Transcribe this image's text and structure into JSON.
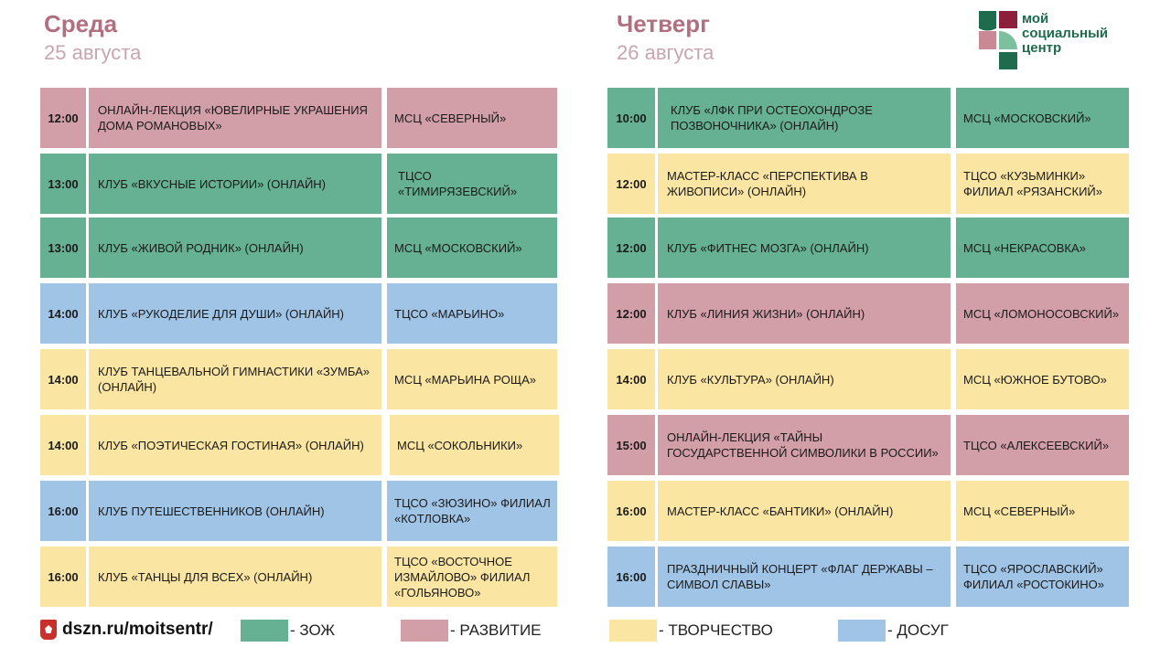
{
  "left": {
    "day": "Среда",
    "date": "25 августа",
    "events": [
      {
        "time": "12:00",
        "title": "ОНЛАЙН-ЛЕКЦИЯ «ЮВЕЛИРНЫЕ УКРАШЕНИЯ ДОМА РОМАНОВЫХ»",
        "place": "МСЦ «СЕВЕРНЫЙ»",
        "category": "razv"
      },
      {
        "time": "13:00",
        "title": "КЛУБ «ВКУСНЫЕ ИСТОРИИ» (ОНЛАЙН)",
        "place": "ТЦСО «ТИМИРЯЗЕВСКИЙ»",
        "category": "zozh"
      },
      {
        "time": "13:00",
        "title": "КЛУБ «ЖИВОЙ РОДНИК» (ОНЛАЙН)",
        "place": "МСЦ «МОСКОВСКИЙ»",
        "category": "zozh"
      },
      {
        "time": "14:00",
        "title": "КЛУБ «РУКОДЕЛИЕ ДЛЯ ДУШИ» (ОНЛАЙН)",
        "place": "ТЦСО «МАРЬИНО»",
        "category": "dosug"
      },
      {
        "time": "14:00",
        "title": "КЛУБ ТАНЦЕВАЛЬНОЙ ГИМНАСТИКИ «ЗУМБА» (ОНЛАЙН)",
        "place": "МСЦ «МАРЬИНА РОЩА»",
        "category": "tvor"
      },
      {
        "time": "14:00",
        "title": "КЛУБ «ПОЭТИЧЕСКАЯ ГОСТИНАЯ» (ОНЛАЙН)",
        "place": "МСЦ «СОКОЛЬНИКИ»",
        "category": "tvor"
      },
      {
        "time": "16:00",
        "title": "КЛУБ ПУТЕШЕСТВЕННИКОВ (ОНЛАЙН)",
        "place": "ТЦСО «ЗЮЗИНО» ФИЛИАЛ «КОТЛОВКА»",
        "category": "dosug"
      },
      {
        "time": "16:00",
        "title": "КЛУБ «ТАНЦЫ ДЛЯ ВСЕХ» (ОНЛАЙН)",
        "place": "ТЦСО «ВОСТОЧНОЕ ИЗМАЙЛОВО» ФИЛИАЛ «ГОЛЬЯНОВО»",
        "category": "tvor"
      }
    ]
  },
  "right": {
    "day": "Четверг",
    "date": "26 августа",
    "events": [
      {
        "time": "10:00",
        "title": "КЛУБ «ЛФК ПРИ ОСТЕОХОНДРОЗЕ ПОЗВОНОЧНИКА» (ОНЛАЙН)",
        "place": "МСЦ «МОСКОВСКИЙ»",
        "category": "zozh"
      },
      {
        "time": "12:00",
        "title": "МАСТЕР-КЛАСС «ПЕРСПЕКТИВА В ЖИВОПИСИ» (ОНЛАЙН)",
        "place": "ТЦСО «КУЗЬМИНКИ» ФИЛИАЛ «РЯЗАНСКИЙ»",
        "category": "tvor"
      },
      {
        "time": "12:00",
        "title": "КЛУБ «ФИТНЕС МОЗГА» (ОНЛАЙН)",
        "place": "МСЦ «НЕКРАСОВКА»",
        "category": "zozh"
      },
      {
        "time": "12:00",
        "title": "КЛУБ «ЛИНИЯ ЖИЗНИ» (ОНЛАЙН)",
        "place": "МСЦ «ЛОМОНОСОВСКИЙ»",
        "category": "razv"
      },
      {
        "time": "14:00",
        "title": "КЛУБ «КУЛЬТУРА» (ОНЛАЙН)",
        "place": "МСЦ «ЮЖНОЕ БУТОВО»",
        "category": "tvor"
      },
      {
        "time": "15:00",
        "title": "ОНЛАЙН-ЛЕКЦИЯ «ТАЙНЫ ГОСУДАРСТВЕННОЙ СИМВОЛИКИ В РОССИИ»",
        "place": "ТЦСО «АЛЕКСЕЕВСКИЙ»",
        "category": "razv"
      },
      {
        "time": "16:00",
        "title": "МАСТЕР-КЛАСС «БАНТИКИ» (ОНЛАЙН)",
        "place": "МСЦ «СЕВЕРНЫЙ»",
        "category": "tvor"
      },
      {
        "time": "16:00",
        "title": "ПРАЗДНИЧНЫЙ КОНЦЕРТ «ФЛАГ ДЕРЖАВЫ – СИМВОЛ СЛАВЫ»",
        "place": "ТЦСО «ЯРОСЛАВСКИЙ» ФИЛИАЛ «РОСТОКИНО»",
        "category": "dosug"
      }
    ]
  },
  "logo": {
    "line1": "мой",
    "line2": "социальный",
    "line3": "центр",
    "icon": "moi-socialnyi-centr-logo-icon"
  },
  "footer": {
    "site": "dszn.ru/moitsentr/",
    "site_icon": "moscow-emblem-icon",
    "legend": [
      {
        "category": "zozh",
        "label": "- ЗОЖ",
        "color": "#66b093"
      },
      {
        "category": "razv",
        "label": "- РАЗВИТИЕ",
        "color": "#d29ea8"
      },
      {
        "category": "tvor",
        "label": "- ТВОРЧЕСТВО",
        "color": "#fbe5a2"
      },
      {
        "category": "dosug",
        "label": "- ДОСУГ",
        "color": "#a0c4e6"
      }
    ]
  }
}
